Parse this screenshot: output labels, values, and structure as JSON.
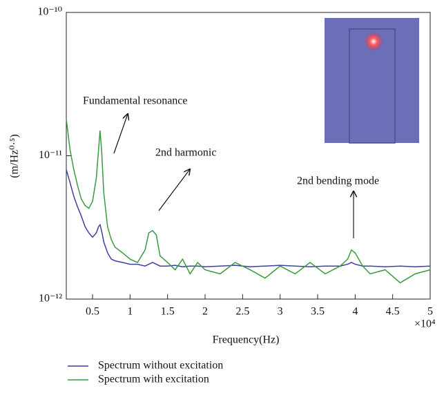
{
  "chart_data": {
    "type": "line",
    "x_label": "Frequency(Hz)",
    "y_label": "(m/Hz⁰·⁵)",
    "x_multiplier": "×10⁴",
    "ylog": true,
    "xlim": [
      0.15,
      5
    ],
    "ylim": [
      1e-12,
      1e-10
    ],
    "xticks": [
      0.5,
      1,
      1.5,
      2,
      2.5,
      3,
      3.5,
      4,
      4.5,
      5
    ],
    "yticks": [
      {
        "value": 1e-12,
        "label": "10⁻¹²"
      },
      {
        "value": 1e-11,
        "label": "10⁻¹¹"
      },
      {
        "value": 1e-10,
        "label": "10⁻¹⁰"
      }
    ],
    "x": [
      0.15,
      0.2,
      0.25,
      0.3,
      0.35,
      0.4,
      0.45,
      0.5,
      0.55,
      0.58,
      0.6,
      0.62,
      0.65,
      0.7,
      0.75,
      0.8,
      0.9,
      1.0,
      1.1,
      1.2,
      1.25,
      1.3,
      1.35,
      1.4,
      1.5,
      1.6,
      1.7,
      1.8,
      1.9,
      2.0,
      2.2,
      2.4,
      2.6,
      2.8,
      3.0,
      3.2,
      3.4,
      3.6,
      3.8,
      3.9,
      3.95,
      4.0,
      4.1,
      4.2,
      4.4,
      4.6,
      4.8,
      5.0
    ],
    "series": [
      {
        "name": "Spectrum without excitation",
        "color": "#3c3fa3",
        "values": [
          8e-12,
          6.5e-12,
          5.2e-12,
          4.4e-12,
          3.8e-12,
          3.2e-12,
          2.9e-12,
          2.7e-12,
          2.9e-12,
          3.2e-12,
          3.3e-12,
          3e-12,
          2.5e-12,
          2.1e-12,
          1.9e-12,
          1.85e-12,
          1.8e-12,
          1.75e-12,
          1.75e-12,
          1.7e-12,
          1.75e-12,
          1.8e-12,
          1.75e-12,
          1.7e-12,
          1.7e-12,
          1.72e-12,
          1.68e-12,
          1.7e-12,
          1.7e-12,
          1.68e-12,
          1.7e-12,
          1.72e-12,
          1.68e-12,
          1.7e-12,
          1.72e-12,
          1.7e-12,
          1.68e-12,
          1.7e-12,
          1.7e-12,
          1.75e-12,
          1.8e-12,
          1.75e-12,
          1.7e-12,
          1.7e-12,
          1.68e-12,
          1.7e-12,
          1.68e-12,
          1.7e-12
        ]
      },
      {
        "name": "Spectrum with excitation",
        "color": "#3a9a3e",
        "values": [
          1.8e-11,
          1.1e-11,
          8e-12,
          6.2e-12,
          5e-12,
          4.5e-12,
          4.3e-12,
          4.8e-12,
          7e-12,
          1.1e-11,
          1.5e-11,
          1.1e-11,
          5.5e-12,
          3.2e-12,
          2.6e-12,
          2.3e-12,
          2.1e-12,
          1.9e-12,
          1.8e-12,
          2.2e-12,
          2.9e-12,
          3e-12,
          2.8e-12,
          2e-12,
          1.8e-12,
          1.6e-12,
          1.9e-12,
          1.5e-12,
          1.8e-12,
          1.6e-12,
          1.5e-12,
          1.8e-12,
          1.6e-12,
          1.4e-12,
          1.7e-12,
          1.5e-12,
          1.8e-12,
          1.5e-12,
          1.7e-12,
          1.9e-12,
          2.2e-12,
          2.1e-12,
          1.7e-12,
          1.5e-12,
          1.6e-12,
          1.3e-12,
          1.5e-12,
          1.6e-12
        ]
      }
    ],
    "annotations": [
      {
        "text": "Fundamental resonance"
      },
      {
        "text": "2nd harmonic"
      },
      {
        "text": "2nd bending mode"
      }
    ]
  }
}
